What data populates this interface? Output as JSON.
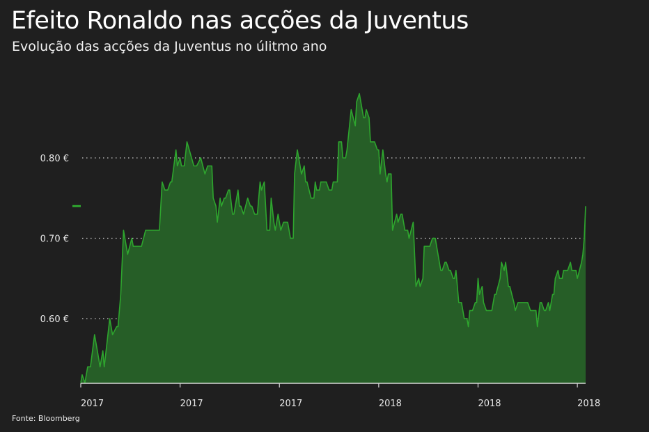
{
  "title": "Efeito Ronaldo nas acções da Juventus",
  "subtitle": "Evolução das acções da Juventus no úlitmo ano",
  "source": "Fonte: Bloomberg",
  "chart_data": {
    "type": "area",
    "title": "Efeito Ronaldo nas acções da Juventus",
    "subtitle": "Evolução das acções da Juventus no úlitmo ano",
    "xlabel": "",
    "ylabel": "",
    "xlim": [
      "2017-07-10",
      "2018-07-11"
    ],
    "ylim": [
      0.52,
      0.89
    ],
    "grid": "horizontal dotted",
    "colors": {
      "background": "#1f1f1f",
      "line": "#2ea52e",
      "fill": "#265e27",
      "grid": "#cccccc",
      "text": "#ffffff"
    },
    "yticks": [
      {
        "value": 0.6,
        "label": "0.60 €"
      },
      {
        "value": 0.7,
        "label": "0.70 €"
      },
      {
        "value": 0.8,
        "label": "0.80 €"
      }
    ],
    "xticks": [
      {
        "value": "2017-07-10",
        "label": "2017"
      },
      {
        "value": "2017-09-20",
        "label": "2017"
      },
      {
        "value": "2017-12-01",
        "label": "2017"
      },
      {
        "value": "2018-02-11",
        "label": "2018"
      },
      {
        "value": "2018-04-24",
        "label": "2018"
      },
      {
        "value": "2018-07-05",
        "label": "2018"
      }
    ],
    "last_value_marker": 0.74,
    "series": [
      {
        "x": [
          "2017-07-10",
          "2017-07-11",
          "2017-07-13",
          "2017-07-15",
          "2017-07-17",
          "2017-07-20",
          "2017-07-22",
          "2017-07-24",
          "2017-07-26",
          "2017-07-27",
          "2017-07-31",
          "2017-08-02",
          "2017-08-05",
          "2017-08-06",
          "2017-08-08",
          "2017-08-10",
          "2017-08-13",
          "2017-08-16",
          "2017-08-17",
          "2017-08-23",
          "2017-08-26",
          "2017-09-05",
          "2017-09-07",
          "2017-09-09",
          "2017-09-11",
          "2017-09-13",
          "2017-09-14",
          "2017-09-17",
          "2017-09-18",
          "2017-09-20",
          "2017-09-21",
          "2017-09-23",
          "2017-09-25",
          "2017-09-30",
          "2017-10-02",
          "2017-10-05",
          "2017-10-08",
          "2017-10-10",
          "2017-10-13",
          "2017-10-14",
          "2017-10-16",
          "2017-10-17",
          "2017-10-19",
          "2017-10-20",
          "2017-10-22",
          "2017-10-23",
          "2017-10-25",
          "2017-10-26",
          "2017-10-28",
          "2017-10-29",
          "2017-11-01",
          "2017-11-02",
          "2017-11-03",
          "2017-11-05",
          "2017-11-08",
          "2017-11-10",
          "2017-11-11",
          "2017-11-13",
          "2017-11-15",
          "2017-11-17",
          "2017-11-18",
          "2017-11-20",
          "2017-11-22",
          "2017-11-24",
          "2017-11-25",
          "2017-11-27",
          "2017-11-28",
          "2017-11-30",
          "2017-12-02",
          "2017-12-04",
          "2017-12-07",
          "2017-12-09",
          "2017-12-11",
          "2017-12-12",
          "2017-12-14",
          "2017-12-17",
          "2017-12-19",
          "2017-12-20",
          "2017-12-21",
          "2017-12-24",
          "2017-12-26",
          "2017-12-27",
          "2017-12-28",
          "2017-12-30",
          "2017-12-31",
          "2018-01-04",
          "2018-01-06",
          "2018-01-08",
          "2018-01-09",
          "2018-01-12",
          "2018-01-13",
          "2018-01-15",
          "2018-01-16",
          "2018-01-18",
          "2018-01-19",
          "2018-01-22",
          "2018-01-25",
          "2018-01-26",
          "2018-01-28",
          "2018-01-29",
          "2018-01-31",
          "2018-02-01",
          "2018-02-02",
          "2018-02-04",
          "2018-02-05",
          "2018-02-08",
          "2018-02-10",
          "2018-02-11",
          "2018-02-12",
          "2018-02-14",
          "2018-02-16",
          "2018-02-17",
          "2018-02-18",
          "2018-02-20",
          "2018-02-21",
          "2018-02-24",
          "2018-02-25",
          "2018-02-27",
          "2018-02-28",
          "2018-03-02",
          "2018-03-04",
          "2018-03-05",
          "2018-03-08",
          "2018-03-10",
          "2018-03-12",
          "2018-03-13",
          "2018-03-15",
          "2018-03-16",
          "2018-03-20",
          "2018-03-22",
          "2018-03-24",
          "2018-03-26",
          "2018-03-27",
          "2018-03-28",
          "2018-03-29",
          "2018-03-31",
          "2018-04-01",
          "2018-04-03",
          "2018-04-04",
          "2018-04-06",
          "2018-04-07",
          "2018-04-08",
          "2018-04-10",
          "2018-04-12",
          "2018-04-14",
          "2018-04-16",
          "2018-04-17",
          "2018-04-18",
          "2018-04-20",
          "2018-04-22",
          "2018-04-23",
          "2018-04-24",
          "2018-04-25",
          "2018-04-27",
          "2018-04-28",
          "2018-04-30",
          "2018-05-04",
          "2018-05-06",
          "2018-05-07",
          "2018-05-10",
          "2018-05-11",
          "2018-05-13",
          "2018-05-14",
          "2018-05-16",
          "2018-05-17",
          "2018-05-20",
          "2018-05-21",
          "2018-05-23",
          "2018-05-30",
          "2018-06-01",
          "2018-06-05",
          "2018-06-06",
          "2018-06-08",
          "2018-06-09",
          "2018-06-11",
          "2018-06-12",
          "2018-06-14",
          "2018-06-15",
          "2018-06-17",
          "2018-06-18",
          "2018-06-19",
          "2018-06-21",
          "2018-06-22",
          "2018-06-24",
          "2018-06-25",
          "2018-06-28",
          "2018-06-30",
          "2018-07-01",
          "2018-07-04",
          "2018-07-05",
          "2018-07-08",
          "2018-07-09",
          "2018-07-10",
          "2018-07-11"
        ],
        "values": [
          0.52,
          0.53,
          0.52,
          0.54,
          0.54,
          0.58,
          0.56,
          0.54,
          0.56,
          0.54,
          0.6,
          0.58,
          0.59,
          0.59,
          0.63,
          0.71,
          0.68,
          0.7,
          0.69,
          0.69,
          0.71,
          0.71,
          0.77,
          0.76,
          0.76,
          0.77,
          0.77,
          0.81,
          0.79,
          0.8,
          0.79,
          0.79,
          0.82,
          0.79,
          0.79,
          0.8,
          0.78,
          0.79,
          0.79,
          0.75,
          0.74,
          0.72,
          0.75,
          0.74,
          0.75,
          0.75,
          0.76,
          0.76,
          0.73,
          0.73,
          0.76,
          0.74,
          0.74,
          0.73,
          0.75,
          0.74,
          0.74,
          0.73,
          0.73,
          0.77,
          0.76,
          0.77,
          0.71,
          0.71,
          0.75,
          0.72,
          0.71,
          0.73,
          0.71,
          0.72,
          0.72,
          0.7,
          0.7,
          0.78,
          0.81,
          0.78,
          0.79,
          0.77,
          0.77,
          0.75,
          0.75,
          0.77,
          0.76,
          0.76,
          0.77,
          0.77,
          0.76,
          0.76,
          0.77,
          0.77,
          0.82,
          0.82,
          0.8,
          0.8,
          0.81,
          0.86,
          0.84,
          0.87,
          0.88,
          0.87,
          0.85,
          0.85,
          0.86,
          0.85,
          0.82,
          0.82,
          0.81,
          0.81,
          0.78,
          0.81,
          0.78,
          0.77,
          0.78,
          0.78,
          0.71,
          0.73,
          0.72,
          0.73,
          0.73,
          0.71,
          0.71,
          0.7,
          0.72,
          0.64,
          0.65,
          0.64,
          0.65,
          0.69,
          0.69,
          0.7,
          0.7,
          0.68,
          0.67,
          0.66,
          0.66,
          0.67,
          0.67,
          0.66,
          0.66,
          0.65,
          0.65,
          0.66,
          0.62,
          0.62,
          0.6,
          0.6,
          0.59,
          0.61,
          0.61,
          0.62,
          0.62,
          0.65,
          0.63,
          0.64,
          0.62,
          0.61,
          0.61,
          0.63,
          0.63,
          0.65,
          0.67,
          0.66,
          0.67,
          0.64,
          0.64,
          0.62,
          0.61,
          0.62,
          0.62,
          0.61,
          0.61,
          0.59,
          0.62,
          0.62,
          0.61,
          0.61,
          0.62,
          0.61,
          0.63,
          0.63,
          0.65,
          0.66,
          0.65,
          0.65,
          0.66,
          0.66,
          0.67,
          0.66,
          0.66,
          0.65,
          0.67,
          0.68,
          0.7,
          0.74
        ]
      }
    ]
  }
}
